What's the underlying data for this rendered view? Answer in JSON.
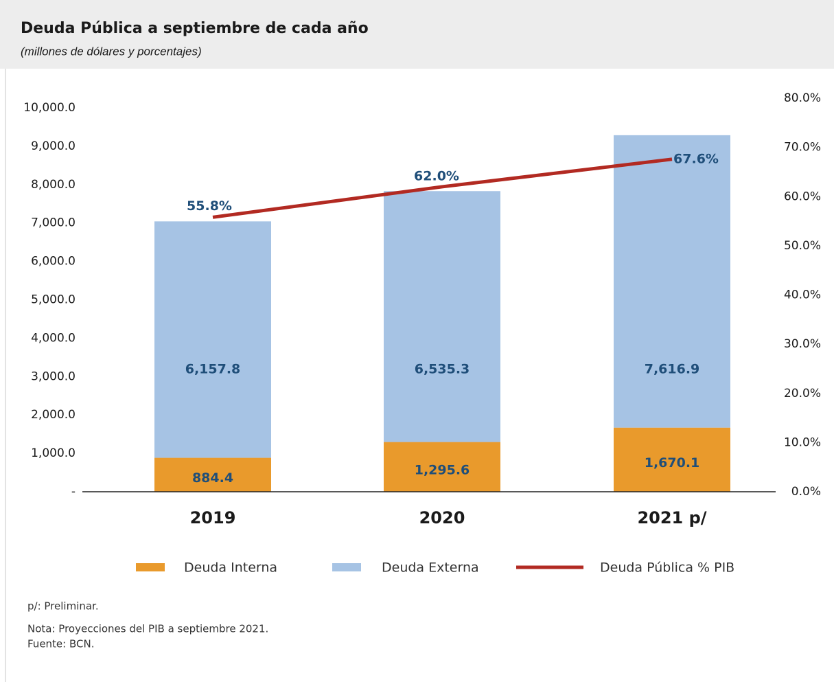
{
  "chart_data": {
    "type": "bar",
    "title": "Deuda Pública a septiembre de cada año",
    "subtitle": "(millones de dólares y porcentajes)",
    "categories": [
      "2019",
      "2020",
      "2021 p/"
    ],
    "stacked": true,
    "series": [
      {
        "name": "Deuda Interna",
        "color": "#e99a2c",
        "values": [
          884.4,
          1295.6,
          1670.1
        ],
        "value_labels": [
          "884.4",
          "1,295.6",
          "1,670.1"
        ]
      },
      {
        "name": "Deuda Externa",
        "color": "#a6c3e4",
        "values": [
          6157.8,
          6535.3,
          7616.9
        ],
        "value_labels": [
          "6,157.8",
          "6,535.3",
          "7,616.9"
        ]
      },
      {
        "name": "Deuda Pública % PIB",
        "color": "#b22a22",
        "type": "line",
        "axis": "y2",
        "values": [
          55.8,
          62.0,
          67.6
        ],
        "value_labels": [
          "55.8%",
          "62.0%",
          "67.6%"
        ]
      }
    ],
    "ylim": [
      0,
      10000
    ],
    "yticks": [
      {
        "value": 0,
        "label": "-"
      },
      {
        "value": 1000,
        "label": "1,000.0"
      },
      {
        "value": 2000,
        "label": "2,000.0"
      },
      {
        "value": 3000,
        "label": "3,000.0"
      },
      {
        "value": 4000,
        "label": "4,000.0"
      },
      {
        "value": 5000,
        "label": "5,000.0"
      },
      {
        "value": 6000,
        "label": "6,000.0"
      },
      {
        "value": 7000,
        "label": "7,000.0"
      },
      {
        "value": 8000,
        "label": "8,000.0"
      },
      {
        "value": 9000,
        "label": "9,000.0"
      },
      {
        "value": 10000,
        "label": "10,000.0"
      }
    ],
    "y2lim": [
      0,
      80
    ],
    "y2ticks": [
      {
        "value": 0,
        "label": "0.0%"
      },
      {
        "value": 10,
        "label": "10.0%"
      },
      {
        "value": 20,
        "label": "20.0%"
      },
      {
        "value": 30,
        "label": "30.0%"
      },
      {
        "value": 40,
        "label": "40.0%"
      },
      {
        "value": 50,
        "label": "50.0%"
      },
      {
        "value": 60,
        "label": "60.0%"
      },
      {
        "value": 70,
        "label": "70.0%"
      },
      {
        "value": 80,
        "label": "80.0%"
      }
    ],
    "legend": "bottom",
    "notes": [
      "p/: Preliminar.",
      "Nota: Proyecciones del PIB a septiembre 2021.",
      "Fuente: BCN."
    ]
  }
}
